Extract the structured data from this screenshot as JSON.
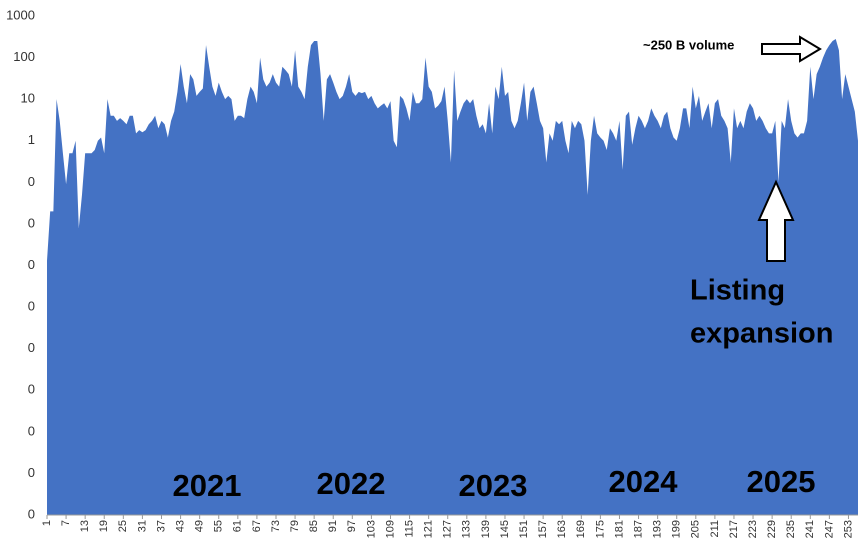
{
  "chart_data": {
    "type": "area",
    "log_scale": true,
    "grid": false,
    "color": "#4472c4",
    "categories": [
      1,
      null,
      null,
      null,
      null,
      null,
      7,
      null,
      null,
      null,
      null,
      null,
      13,
      null,
      null,
      null,
      null,
      null,
      19,
      null,
      null,
      null,
      null,
      null,
      25,
      null,
      null,
      null,
      null,
      null,
      31,
      null,
      null,
      null,
      null,
      null,
      37,
      null,
      null,
      null,
      null,
      null,
      43,
      null,
      null,
      null,
      null,
      null,
      49,
      null,
      null,
      null,
      null,
      null,
      55,
      null,
      null,
      null,
      null,
      null,
      61,
      null,
      null,
      null,
      null,
      null,
      67,
      null,
      null,
      null,
      null,
      null,
      73,
      null,
      null,
      null,
      null,
      null,
      79,
      null,
      null,
      null,
      null,
      null,
      85,
      null,
      null,
      null,
      null,
      null,
      91,
      null,
      null,
      null,
      null,
      null,
      97,
      null,
      null,
      null,
      null,
      null,
      103,
      null,
      null,
      null,
      null,
      null,
      109,
      null,
      null,
      null,
      null,
      null,
      115,
      null,
      null,
      null,
      null,
      null,
      121,
      null,
      null,
      null,
      null,
      null,
      127,
      null,
      null,
      null,
      null,
      null,
      133,
      null,
      null,
      null,
      null,
      null,
      139,
      null,
      null,
      null,
      null,
      null,
      145,
      null,
      null,
      null,
      null,
      null,
      151,
      null,
      null,
      null,
      null,
      null,
      157,
      null,
      null,
      null,
      null,
      null,
      163,
      null,
      null,
      null,
      null,
      null,
      169,
      null,
      null,
      null,
      null,
      null,
      175,
      null,
      null,
      null,
      null,
      null,
      181,
      null,
      null,
      null,
      null,
      null,
      187,
      null,
      null,
      null,
      null,
      null,
      193,
      null,
      null,
      null,
      null,
      null,
      199,
      null,
      null,
      null,
      null,
      null,
      205,
      null,
      null,
      null,
      null,
      null,
      211,
      null,
      null,
      null,
      null,
      null,
      217,
      null,
      null,
      null,
      null,
      null,
      223,
      null,
      null,
      null,
      null,
      null,
      229,
      null,
      null,
      null,
      null,
      null,
      235,
      null,
      null,
      null,
      null,
      null,
      241,
      null,
      null,
      null,
      null,
      null,
      247,
      null,
      null,
      null,
      null,
      null,
      253,
      null,
      null,
      null
    ],
    "values": [
      0.0013,
      0.02,
      0.02,
      10,
      3,
      0.5,
      0.09,
      0.5,
      0.5,
      1,
      0.008,
      0.05,
      0.5,
      0.5,
      0.5,
      0.6,
      1,
      1.2,
      0.5,
      10,
      4,
      4,
      3,
      3.5,
      3,
      2.5,
      4,
      4,
      1.5,
      1.8,
      1.6,
      1.8,
      2.5,
      3,
      4,
      2,
      3,
      2.5,
      1.2,
      3,
      5,
      15,
      70,
      20,
      8,
      40,
      30,
      12,
      15,
      18,
      200,
      60,
      20,
      12,
      25,
      15,
      10,
      12,
      10,
      3,
      4,
      4,
      3.5,
      10,
      20,
      15,
      8,
      100,
      30,
      20,
      25,
      40,
      25,
      20,
      60,
      50,
      40,
      20,
      150,
      20,
      15,
      10,
      60,
      200,
      250,
      250,
      40,
      3,
      30,
      40,
      25,
      15,
      10,
      12,
      20,
      40,
      15,
      12,
      15,
      14,
      15,
      10,
      12,
      8,
      6,
      7,
      8,
      6,
      9,
      1,
      0.7,
      12,
      10,
      6,
      3,
      15,
      8,
      8,
      10,
      100,
      20,
      15,
      6,
      7,
      9,
      20,
      3,
      0.3,
      50,
      3,
      5,
      8,
      10,
      8,
      10,
      4,
      2,
      2.5,
      1.5,
      8,
      1.5,
      20,
      10,
      60,
      12,
      15,
      3,
      2,
      3,
      8,
      25,
      3,
      15,
      20,
      8,
      3,
      2,
      0.3,
      1.5,
      1,
      3,
      2.5,
      3,
      1,
      0.5,
      3,
      2,
      3,
      2.5,
      1,
      0.05,
      1,
      4,
      1.5,
      1.2,
      1,
      0.6,
      2,
      1.5,
      1,
      3,
      0.2,
      4,
      5,
      0.8,
      2,
      4,
      3,
      2,
      3,
      6,
      4,
      3,
      2,
      4,
      5,
      2,
      1.2,
      1,
      2,
      6,
      6,
      2,
      20,
      6,
      12,
      3,
      5,
      8,
      2,
      8,
      10,
      4,
      3,
      2,
      0.3,
      6,
      2,
      3,
      2,
      5,
      8,
      6,
      3,
      4,
      3,
      2,
      1.5,
      1.5,
      3,
      0.1,
      3,
      2,
      10,
      3,
      1.5,
      1.2,
      1.5,
      1.5,
      3,
      60,
      10,
      40,
      60,
      100,
      150,
      200,
      250,
      280,
      150,
      10,
      40,
      20,
      10,
      5,
      1
    ],
    "ylim": [
      1e-09,
      1000
    ],
    "yticks": [
      1000,
      100,
      10,
      1,
      {
        "value": 0.1,
        "label": "0"
      },
      {
        "value": 0.01,
        "label": "0"
      },
      {
        "value": 0.001,
        "label": "0"
      },
      {
        "value": 0.0001,
        "label": "0"
      },
      {
        "value": 1e-05,
        "label": "0"
      },
      {
        "value": 1e-06,
        "label": "0"
      },
      {
        "value": 1e-07,
        "label": "0"
      },
      {
        "value": 1e-08,
        "label": "0"
      },
      {
        "value": 1e-09,
        "label": "0"
      }
    ],
    "year_labels": [
      "2021",
      "2022",
      "2023",
      "2024",
      "2025"
    ],
    "volume_annotation": "~250 B volume",
    "listing_annotation": [
      "Listing",
      "expansion"
    ]
  }
}
